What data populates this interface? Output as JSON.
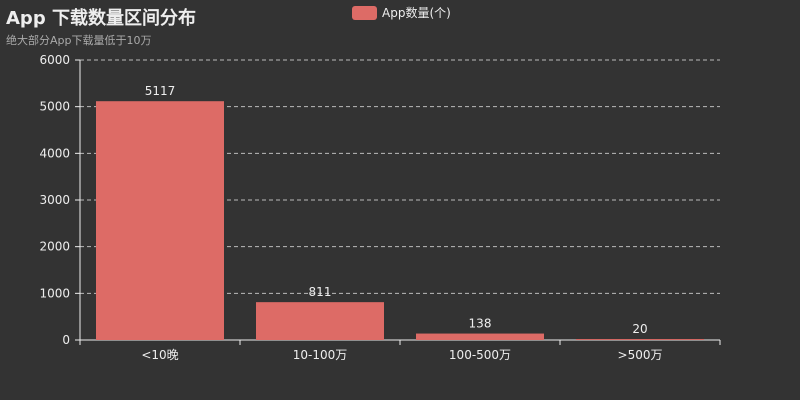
{
  "chart_data": {
    "type": "bar",
    "title": "App 下载数量区间分布",
    "subtitle": "绝大部分App下载量低于10万",
    "categories": [
      "<10晚",
      "10-100万",
      "100-500万",
      ">500万"
    ],
    "series": [
      {
        "name": "App数量(个)",
        "values": [
          5117,
          811,
          138,
          20
        ],
        "color": "#dd6b66"
      }
    ],
    "y_ticks": [
      0,
      1000,
      2000,
      3000,
      4000,
      5000,
      6000
    ],
    "ylim": [
      0,
      6000
    ],
    "grid": true,
    "legend_position": "top-center",
    "data_labels": true
  }
}
